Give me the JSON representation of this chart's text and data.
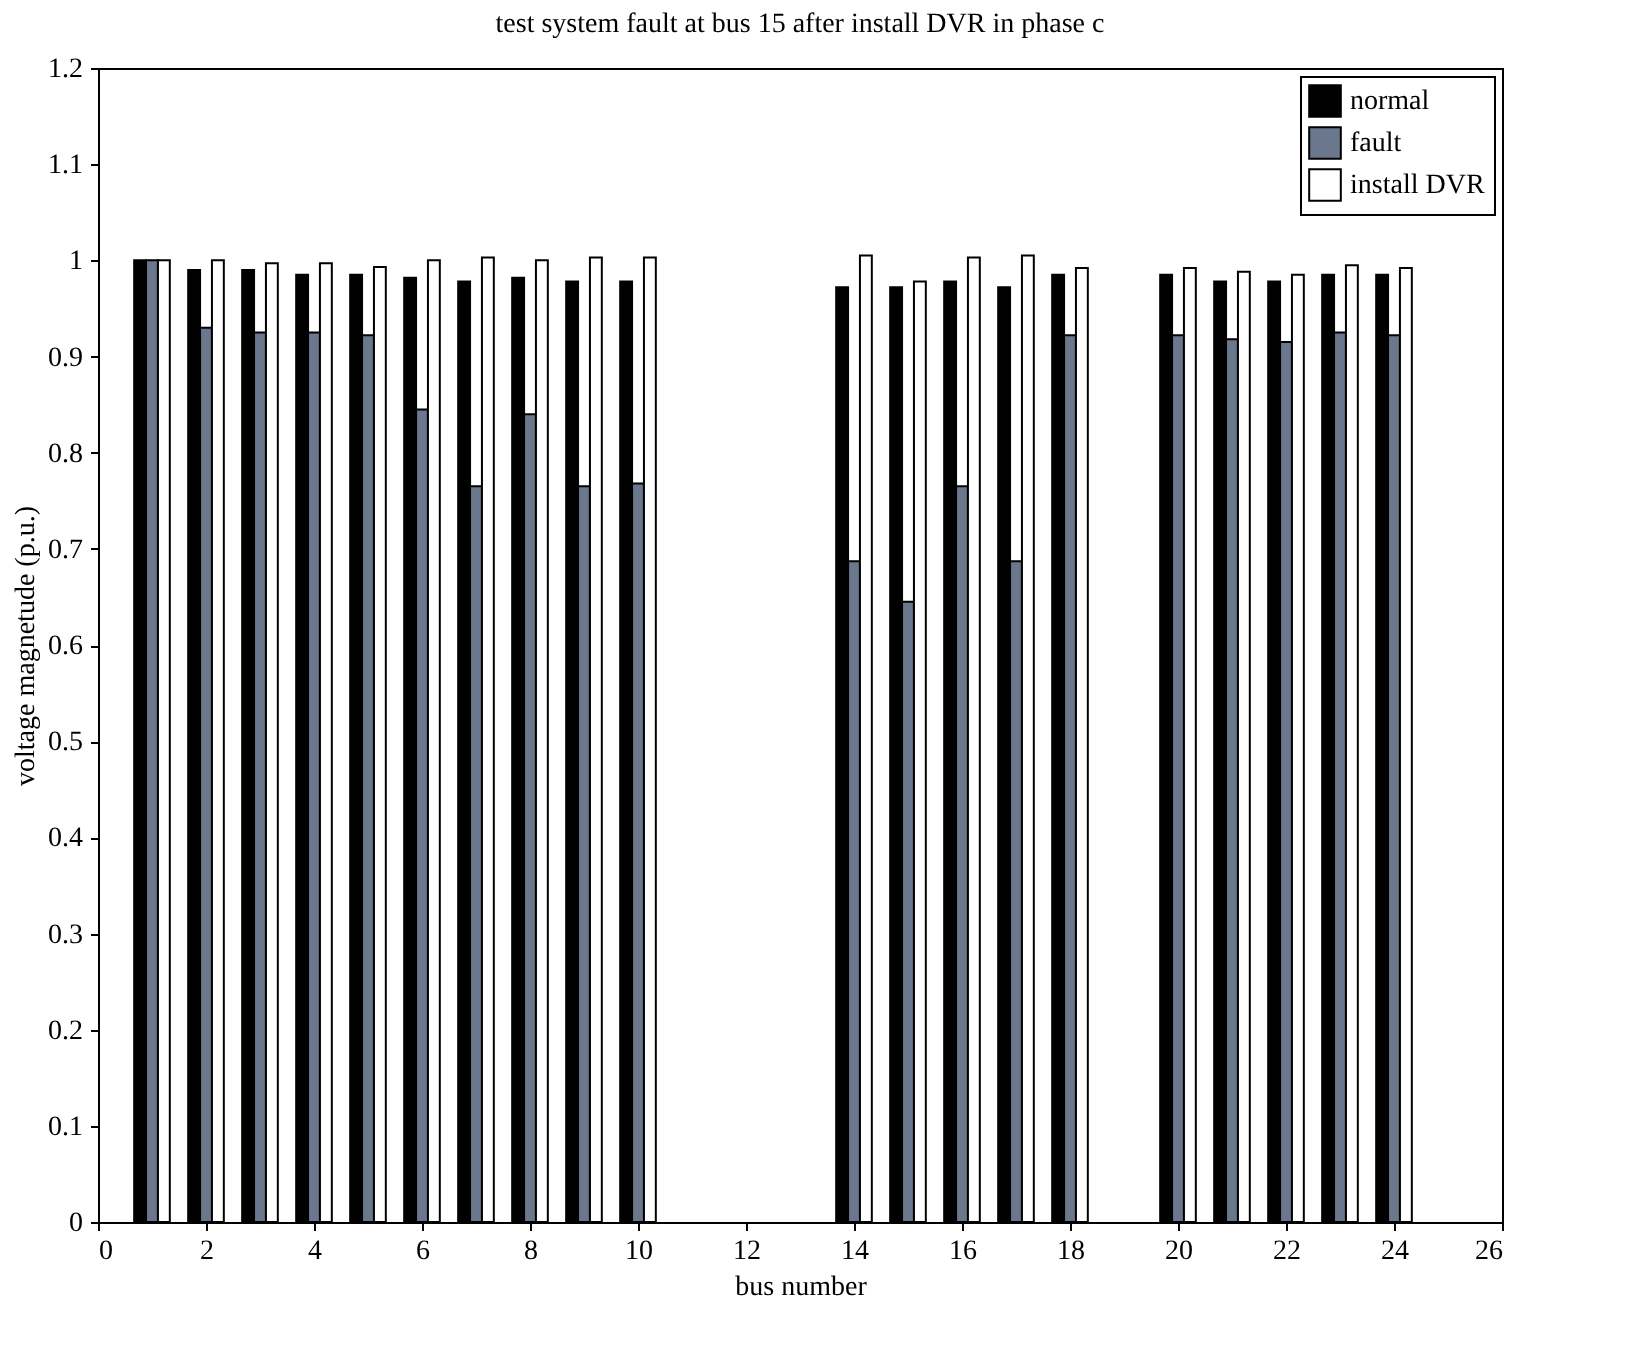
{
  "chart_data": {
    "type": "bar",
    "title": "test system fault at bus 15 after install DVR in phase c",
    "xlabel": "bus number",
    "ylabel": "voltage magnetude (p.u.)",
    "x": [
      1,
      2,
      3,
      4,
      5,
      6,
      7,
      8,
      9,
      10,
      14,
      15,
      16,
      17,
      18,
      20,
      21,
      22,
      23,
      24
    ],
    "series": [
      {
        "name": "normal",
        "color": "#000000",
        "values": [
          1.0,
          0.99,
          0.99,
          0.985,
          0.985,
          0.982,
          0.978,
          0.982,
          0.978,
          0.978,
          0.972,
          0.972,
          0.978,
          0.972,
          0.985,
          0.985,
          0.978,
          0.978,
          0.985,
          0.985
        ]
      },
      {
        "name": "fault",
        "color": "#6b778c",
        "values": [
          1.0,
          0.93,
          0.925,
          0.925,
          0.922,
          0.845,
          0.765,
          0.84,
          0.765,
          0.768,
          0.687,
          0.645,
          0.765,
          0.687,
          0.922,
          0.922,
          0.918,
          0.915,
          0.925,
          0.922
        ]
      },
      {
        "name": "install DVR",
        "color": "#ffffff",
        "values": [
          1.0,
          1.0,
          0.997,
          0.997,
          0.993,
          1.0,
          1.003,
          1.0,
          1.003,
          1.003,
          1.005,
          0.978,
          1.003,
          1.005,
          0.992,
          0.992,
          0.988,
          0.985,
          0.995,
          0.992
        ]
      }
    ],
    "xlim": [
      0,
      26
    ],
    "xticks": [
      0,
      2,
      4,
      6,
      8,
      10,
      12,
      14,
      16,
      18,
      20,
      22,
      24,
      26
    ],
    "ylim": [
      0,
      1.2
    ],
    "yticks": [
      0,
      0.1,
      0.2,
      0.3,
      0.4,
      0.5,
      0.6,
      0.7,
      0.8,
      0.9,
      1,
      1.1,
      1.2
    ],
    "grid": false,
    "legend": "top right"
  }
}
